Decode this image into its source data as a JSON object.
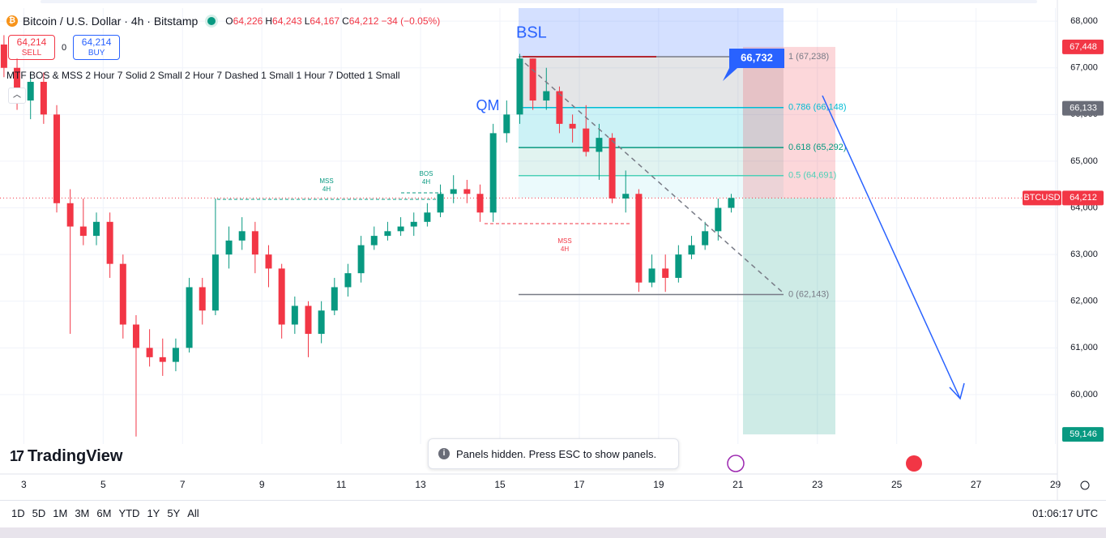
{
  "header": {
    "symbol": "Bitcoin / U.S. Dollar · 4h · Bitstamp",
    "ohlc_labels": [
      "O",
      "H",
      "L",
      "C"
    ],
    "ohlc_values": [
      "64,226",
      "64,243",
      "64,167",
      "64,212"
    ],
    "change": "−34 (−0.05%)"
  },
  "trade": {
    "sell_price": "64,214",
    "sell": "SELL",
    "spread": "0",
    "buy_price": "64,214",
    "buy": "BUY"
  },
  "indicator": "MTF BOS & MSS 2 Hour 7 Solid 2 Small 2 Hour 7 Dashed 1 Small 1 Hour 7 Dotted 1 Small",
  "chart_data": {
    "type": "candlestick",
    "up_color": "#089981",
    "down_color": "#f23645",
    "grid": true,
    "x": [
      2.5,
      2.83,
      3.17,
      3.5,
      3.83,
      4.17,
      4.5,
      4.83,
      5.17,
      5.5,
      5.83,
      6.17,
      6.5,
      6.83,
      7.17,
      7.5,
      7.83,
      8.17,
      8.5,
      8.83,
      9.17,
      9.5,
      9.83,
      10.17,
      10.5,
      10.83,
      11.17,
      11.5,
      11.83,
      12.17,
      12.5,
      12.83,
      13.17,
      13.5,
      13.83,
      14.17,
      14.5,
      14.83,
      15.17,
      15.5,
      15.83,
      16.17,
      16.5,
      16.83,
      17.17,
      17.5,
      17.83,
      18.17,
      18.5,
      18.83,
      19.17,
      19.5,
      19.83,
      20.17,
      20.5,
      20.83
    ],
    "open": [
      67500,
      67000,
      66300,
      66700,
      66000,
      64100,
      63600,
      63400,
      63700,
      62800,
      61500,
      61000,
      60800,
      60700,
      61000,
      62300,
      61800,
      63000,
      63300,
      63500,
      63000,
      62700,
      61500,
      61900,
      61300,
      61800,
      62300,
      62600,
      63200,
      63400,
      63500,
      63600,
      63700,
      63900,
      64300,
      64400,
      64300,
      63900,
      65600,
      66000,
      67200,
      66300,
      66500,
      65800,
      65700,
      65200,
      65500,
      64200,
      64300,
      62400,
      62700,
      62500,
      63000,
      63200,
      63500,
      64000
    ],
    "high": [
      67700,
      67200,
      66900,
      66900,
      66200,
      64400,
      64200,
      63900,
      63900,
      63000,
      61700,
      61400,
      61200,
      61200,
      62500,
      62500,
      64200,
      63600,
      63800,
      63700,
      63200,
      62800,
      62100,
      62000,
      62000,
      62500,
      62800,
      63400,
      63600,
      63700,
      63800,
      63900,
      64100,
      64500,
      64700,
      64600,
      64500,
      65800,
      66300,
      67300,
      67200,
      67000,
      66600,
      66000,
      66200,
      65800,
      65600,
      64800,
      64400,
      63000,
      63000,
      63200,
      63400,
      63700,
      64200,
      64300
    ],
    "low": [
      66800,
      66100,
      65900,
      65800,
      63900,
      61300,
      63200,
      63200,
      62500,
      61200,
      59100,
      60600,
      60400,
      60500,
      60900,
      61500,
      61700,
      62700,
      63100,
      62600,
      62300,
      61200,
      61300,
      60800,
      61100,
      61700,
      62100,
      62400,
      63100,
      63300,
      63400,
      63400,
      63600,
      63800,
      64100,
      64100,
      63700,
      63700,
      65400,
      65800,
      66100,
      66100,
      65600,
      65400,
      65100,
      64600,
      64100,
      63900,
      62200,
      62300,
      62200,
      62400,
      62900,
      63100,
      63300,
      63900
    ],
    "close": [
      67000,
      66300,
      66700,
      66000,
      64100,
      63600,
      63400,
      63700,
      62800,
      61500,
      61000,
      60800,
      60700,
      61000,
      62300,
      61800,
      63000,
      63300,
      63500,
      63000,
      62700,
      61500,
      61900,
      61300,
      61800,
      62300,
      62600,
      63200,
      63400,
      63500,
      63600,
      63700,
      63900,
      64300,
      64400,
      64300,
      63900,
      65600,
      66000,
      67200,
      66300,
      66500,
      65800,
      65700,
      65200,
      65500,
      64200,
      64300,
      62400,
      62700,
      62500,
      63000,
      63200,
      63500,
      64000,
      64212
    ],
    "xlim": [
      2.4,
      29.05
    ],
    "xticks": [
      3,
      5,
      7,
      9,
      11,
      13,
      15,
      17,
      19,
      21,
      23,
      25,
      27,
      29
    ],
    "ylim": [
      58940,
      68280
    ],
    "yticks": [
      {
        "value": 60000,
        "label": "60,000"
      },
      {
        "value": 61000,
        "label": "61,000"
      },
      {
        "value": 62000,
        "label": "62,000"
      },
      {
        "value": 63000,
        "label": "63,000"
      },
      {
        "value": 64000,
        "label": "64,000"
      },
      {
        "value": 65000,
        "label": "65,000"
      },
      {
        "value": 66000,
        "label": "66,000"
      },
      {
        "value": 67000,
        "label": "67,000"
      },
      {
        "value": 68000,
        "label": "68,000"
      }
    ],
    "fib_levels": [
      {
        "value": 67238,
        "label": "1 (67,238)",
        "color": "#787b86"
      },
      {
        "value": 66148,
        "label": "0.786 (66,148)",
        "color": "#00bcd4"
      },
      {
        "value": 65292,
        "label": "0.618 (65,292)",
        "color": "#089981"
      },
      {
        "value": 64691,
        "label": "0.5 (64,691)",
        "color": "#4dd0b7"
      },
      {
        "value": 62143,
        "label": "0 (62,143)",
        "color": "#787b86"
      }
    ],
    "price_tags": [
      {
        "value": 67448,
        "label": "67,448",
        "color": "#f23645"
      },
      {
        "value": 66133,
        "label": "66,133",
        "color": "#6a6d78"
      },
      {
        "value": 64212,
        "label": "64,212",
        "name": "BTCUSD",
        "color": "#f23645"
      },
      {
        "value": 59146,
        "label": "59,146",
        "color": "#089981"
      }
    ],
    "annotations": [
      {
        "text": [
          "BSL"
        ],
        "color": "#2962ff"
      },
      {
        "text": [
          "QM"
        ],
        "color": "#2962ff"
      },
      {
        "text": [
          "MSS",
          "4H"
        ],
        "color": "#089981"
      },
      {
        "text": [
          "BOS",
          "4H"
        ],
        "color": "#089981"
      },
      {
        "text": [
          "MSS",
          "4H"
        ],
        "color": "#f23645"
      },
      {
        "text": [
          "66,732"
        ],
        "color": "#2962ff"
      }
    ]
  },
  "toolbar": {
    "ranges": [
      "1D",
      "5D",
      "1M",
      "3M",
      "6M",
      "YTD",
      "1Y",
      "5Y",
      "All"
    ],
    "time": "01:06:17 UTC"
  },
  "toast": "Panels hidden. Press ESC to show panels.",
  "logo": "TradingView"
}
